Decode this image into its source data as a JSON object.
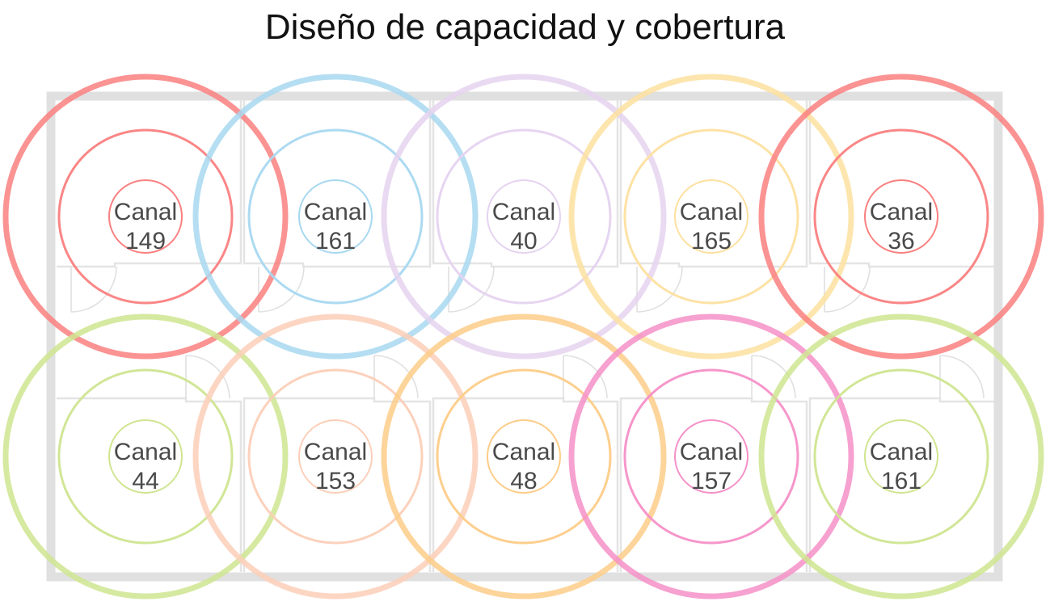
{
  "title": "Diseño de capacidad y cobertura",
  "access_points": [
    {
      "label": "Canal",
      "channel": "149",
      "color": "#fa8080"
    },
    {
      "label": "Canal",
      "channel": "161",
      "color": "#a8d8f0"
    },
    {
      "label": "Canal",
      "channel": "40",
      "color": "#e5d3f0"
    },
    {
      "label": "Canal",
      "channel": "165",
      "color": "#fde0a0"
    },
    {
      "label": "Canal",
      "channel": "36",
      "color": "#fa8080"
    },
    {
      "label": "Canal",
      "channel": "44",
      "color": "#cfe590"
    },
    {
      "label": "Canal",
      "channel": "153",
      "color": "#fccfb8"
    },
    {
      "label": "Canal",
      "channel": "48",
      "color": "#fdcc88"
    },
    {
      "label": "Canal",
      "channel": "157",
      "color": "#f590c8"
    },
    {
      "label": "Canal",
      "channel": "161",
      "color": "#cfe590"
    }
  ]
}
